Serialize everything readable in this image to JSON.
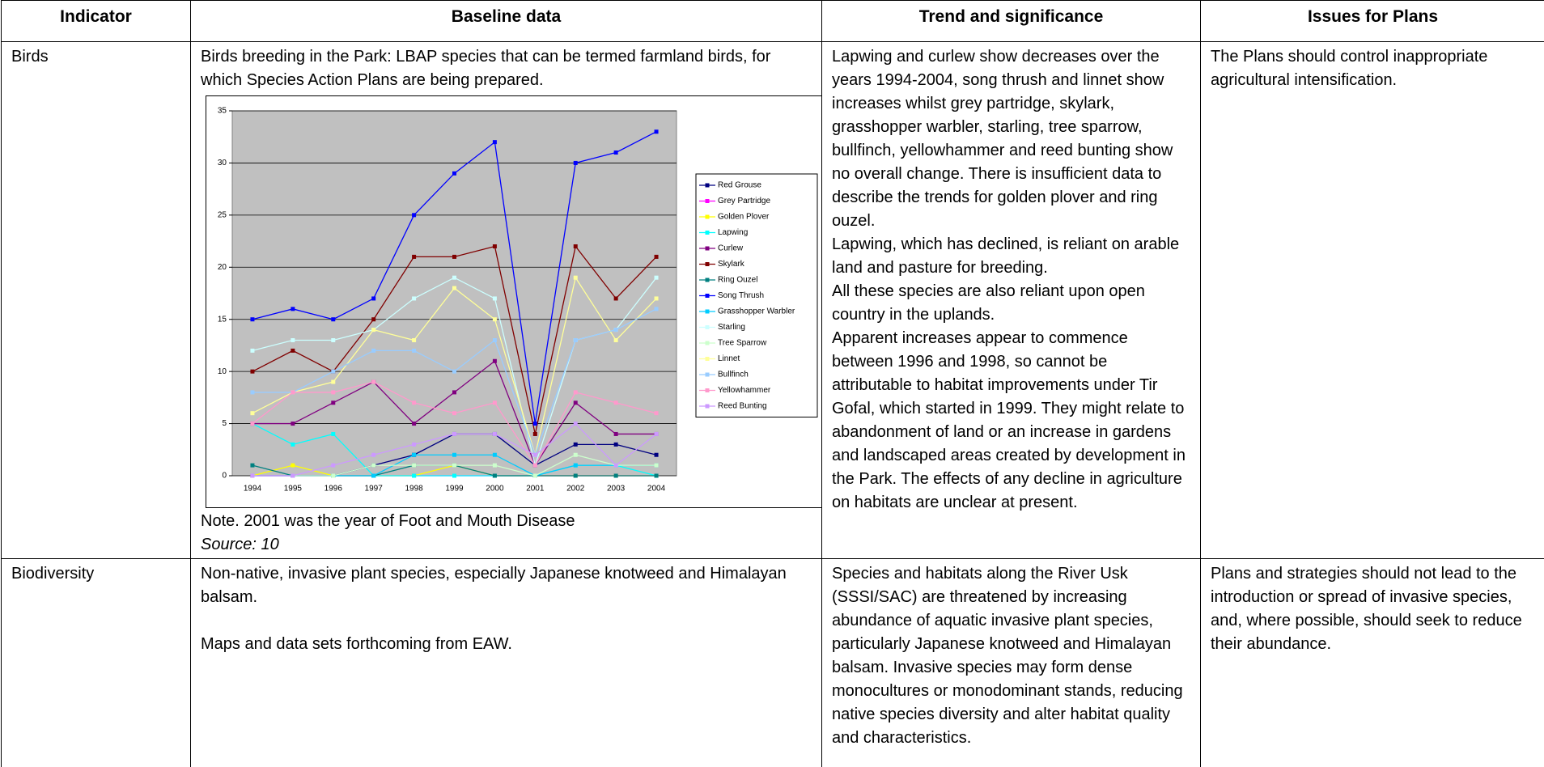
{
  "table": {
    "header": [
      "Indicator",
      "Baseline data",
      "Trend and significance",
      "Issues for Plans"
    ],
    "rows": [
      {
        "indicator": "Birds",
        "baseline": {
          "text": "Birds breeding in the Park: LBAP species that can be termed farmland birds, for which Species Action Plans are being prepared.",
          "note": "Note. 2001 was the year of Foot and Mouth Disease",
          "source": "Source: 10"
        },
        "trend": [
          "Lapwing and curlew show decreases over the years 1994-2004, song thrush and linnet show increases whilst grey partridge, skylark, grasshopper warbler, starling, tree sparrow, bullfinch, yellowhammer and reed bunting show no overall change. There is insufficient data to describe the trends for golden plover and ring ouzel.",
          "Lapwing, which has declined, is reliant on arable land and pasture for breeding.",
          "All these species are also reliant upon open country in the uplands.",
          "Apparent increases appear to commence between 1996 and 1998, so cannot be attributable to habitat improvements under Tir Gofal, which started in 1999. They might relate to abandonment of land or an increase in gardens and landscaped areas created by development in the Park.  The effects of any decline in agriculture on habitats are unclear at present."
        ],
        "issues": "The Plans should control inappropriate agricultural intensification."
      },
      {
        "indicator": "Biodiversity",
        "baseline": [
          "Non-native, invasive plant species, especially Japanese knotweed and Himalayan balsam.",
          "Maps and data sets forthcoming from EAW."
        ],
        "trend": [
          "Species and habitats along the River Usk (SSSI/SAC) are threatened by increasing abundance of aquatic invasive plant species, particularly Japanese knotweed and Himalayan balsam.  Invasive species may form dense monocultures or monodominant stands, reducing native species diversity and alter habitat quality and characteristics."
        ],
        "issues": "Plans and strategies should not lead to the introduction or spread of invasive species, and, where possible, should seek to reduce their abundance."
      }
    ]
  },
  "chart_data": {
    "type": "line",
    "categories": [
      "1994",
      "1995",
      "1996",
      "1997",
      "1998",
      "1999",
      "2000",
      "2001",
      "2002",
      "2003",
      "2004"
    ],
    "ylim": [
      0,
      35
    ],
    "yticks": [
      0,
      5,
      10,
      15,
      20,
      25,
      30,
      35
    ],
    "grid": true,
    "legend": "right",
    "series": [
      {
        "name": "Red Grouse",
        "color": "#000080",
        "values": [
          0,
          0,
          0,
          1,
          2,
          4,
          4,
          1,
          3,
          3,
          2
        ]
      },
      {
        "name": "Grey Partridge",
        "color": "#ff00ff",
        "values": [
          0,
          0,
          0,
          0,
          0,
          0,
          0,
          0,
          0,
          0,
          0
        ]
      },
      {
        "name": "Golden Plover",
        "color": "#ffff00",
        "values": [
          0,
          1,
          0,
          0,
          0,
          1,
          0,
          0,
          0,
          0,
          0
        ]
      },
      {
        "name": "Lapwing",
        "color": "#00ffff",
        "values": [
          5,
          3,
          4,
          0,
          0,
          0,
          0,
          0,
          1,
          1,
          0
        ]
      },
      {
        "name": "Curlew",
        "color": "#800080",
        "values": [
          5,
          5,
          7,
          9,
          5,
          8,
          11,
          1,
          7,
          4,
          4
        ]
      },
      {
        "name": "Skylark",
        "color": "#800000",
        "values": [
          10,
          12,
          10,
          15,
          21,
          21,
          22,
          4,
          22,
          17,
          21
        ]
      },
      {
        "name": "Ring Ouzel",
        "color": "#008080",
        "values": [
          1,
          0,
          0,
          0,
          1,
          1,
          0,
          0,
          0,
          0,
          0
        ]
      },
      {
        "name": "Song Thrush",
        "color": "#0000ff",
        "values": [
          15,
          16,
          15,
          17,
          25,
          29,
          32,
          5,
          30,
          31,
          33
        ]
      },
      {
        "name": "Grasshopper Warbler",
        "color": "#00ccff",
        "values": [
          0,
          0,
          0,
          0,
          2,
          2,
          2,
          0,
          1,
          1,
          1
        ]
      },
      {
        "name": "Starling",
        "color": "#ccffff",
        "values": [
          12,
          13,
          13,
          14,
          17,
          19,
          17,
          1,
          13,
          14,
          19
        ]
      },
      {
        "name": "Tree Sparrow",
        "color": "#ccffcc",
        "values": [
          0,
          0,
          0,
          1,
          1,
          1,
          1,
          0,
          2,
          1,
          1
        ]
      },
      {
        "name": "Linnet",
        "color": "#ffff99",
        "values": [
          6,
          8,
          9,
          14,
          13,
          18,
          15,
          2,
          19,
          13,
          17
        ]
      },
      {
        "name": "Bullfinch",
        "color": "#99ccff",
        "values": [
          8,
          8,
          10,
          12,
          12,
          10,
          13,
          2,
          13,
          14,
          16
        ]
      },
      {
        "name": "Yellowhammer",
        "color": "#ff99cc",
        "values": [
          5,
          8,
          8,
          9,
          7,
          6,
          7,
          1,
          8,
          7,
          6
        ]
      },
      {
        "name": "Reed Bunting",
        "color": "#cc99ff",
        "values": [
          0,
          0,
          1,
          2,
          3,
          4,
          4,
          2,
          5,
          1,
          4
        ]
      }
    ]
  }
}
